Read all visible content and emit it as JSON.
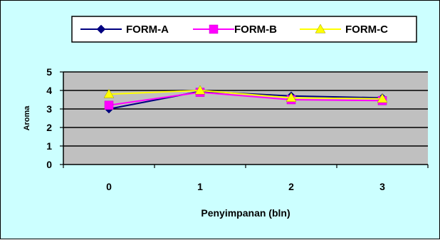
{
  "chart_data": {
    "type": "line",
    "title": "",
    "xlabel": "Penyimpanan (bln)",
    "ylabel": "Aroma",
    "categories": [
      "0",
      "1",
      "2",
      "3"
    ],
    "ylim": [
      0,
      5
    ],
    "yticks": [
      "0",
      "1",
      "2",
      "3",
      "4",
      "5"
    ],
    "grid": true,
    "legend_position": "top",
    "plot_background": "#c0c0c0",
    "chart_background": "#ccffff",
    "series": [
      {
        "name": "FORM-A",
        "values": [
          3.0,
          3.95,
          3.7,
          3.6
        ],
        "color": "#000080",
        "marker": "diamond"
      },
      {
        "name": "FORM-B",
        "values": [
          3.2,
          3.9,
          3.5,
          3.45
        ],
        "color": "#ff00ff",
        "marker": "square"
      },
      {
        "name": "FORM-C",
        "values": [
          3.8,
          4.0,
          3.6,
          3.55
        ],
        "color": "#ffff00",
        "marker": "triangle"
      }
    ]
  }
}
